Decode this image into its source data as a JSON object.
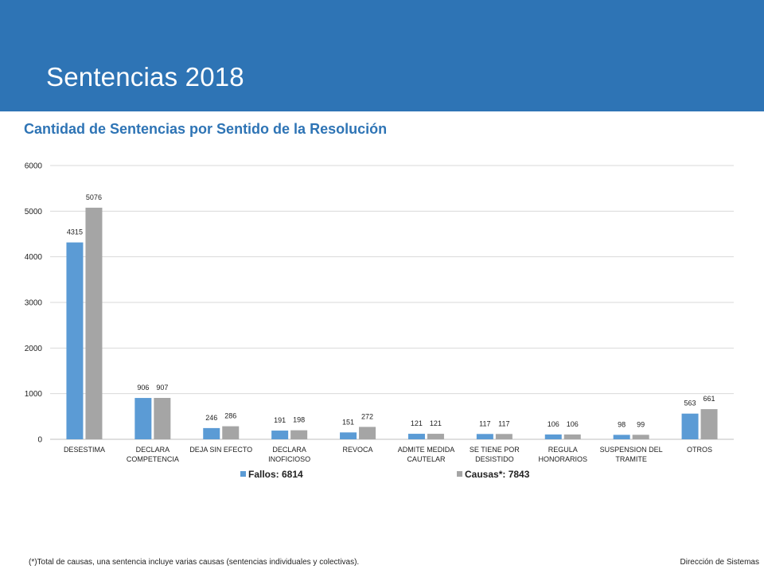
{
  "slide": {
    "title": "Sentencias 2018",
    "footnote": "(*)Total de causas, una sentencia incluye varias causas (sentencias individuales y colectivas).",
    "footer_right": "Dirección de Sistemas"
  },
  "colors": {
    "header": "#2e74b5",
    "series_fallos": "#5b9bd5",
    "series_causas": "#a5a5a5",
    "title_text": "#2e74b5"
  },
  "chart_data": {
    "type": "bar",
    "title": "Cantidad de Sentencias por Sentido de la Resolución",
    "xlabel": "",
    "ylabel": "",
    "ylim": [
      0,
      6000
    ],
    "yticks": [
      "0",
      "1000",
      "2000",
      "3000",
      "4000",
      "5000",
      "6000"
    ],
    "grid": true,
    "legend_position": "bottom",
    "categories": [
      [
        "DESESTIMA"
      ],
      [
        "DECLARA",
        "COMPETENCIA"
      ],
      [
        "DEJA SIN EFECTO"
      ],
      [
        "DECLARA",
        "INOFICIOSO"
      ],
      [
        "REVOCA"
      ],
      [
        "ADMITE MEDIDA",
        "CAUTELAR"
      ],
      [
        "SE TIENE POR",
        "DESISTIDO"
      ],
      [
        "REGULA",
        "HONORARIOS"
      ],
      [
        "SUSPENSION DEL",
        "TRAMITE"
      ],
      [
        "OTROS"
      ]
    ],
    "series": [
      {
        "name": "Fallos: 6814",
        "values": [
          4315,
          906,
          246,
          191,
          151,
          121,
          117,
          106,
          98,
          563
        ]
      },
      {
        "name": "Causas*: 7843",
        "values": [
          5076,
          907,
          286,
          198,
          272,
          121,
          117,
          106,
          99,
          661
        ]
      }
    ]
  }
}
